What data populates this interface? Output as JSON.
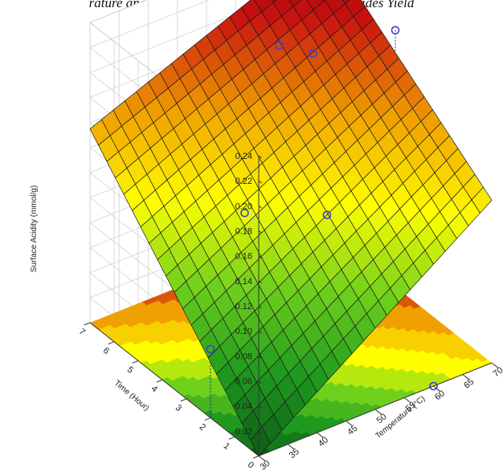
{
  "chart_data": {
    "type": "surface3d",
    "title": "rature and Time of Deammination on Monoglycerides Yield",
    "xlabel": "Temperature (°C)",
    "ylabel": "Time (Hour)",
    "zlabel": "Surface Acidity (mmol/g)",
    "x_ticks": [
      "30",
      "35",
      "40",
      "45",
      "50",
      "55",
      "60",
      "65",
      "70"
    ],
    "y_ticks": [
      "0",
      "1",
      "2",
      "3",
      "4",
      "5",
      "6",
      "7"
    ],
    "z_ticks": [
      "0.02",
      "0.04",
      "0.06",
      "0.08",
      "0.10",
      "0.12",
      "0.14",
      "0.16",
      "0.18",
      "0.20",
      "0.22",
      "0.24"
    ],
    "xlim": [
      30,
      70
    ],
    "ylim": [
      0,
      7
    ],
    "zlim": [
      0,
      0.24
    ],
    "surface_corners": {
      "t30_h0": 0.0,
      "t70_h0": 0.13,
      "t30_h7": 0.155,
      "t70_h7": 0.23
    },
    "observed_points": [
      {
        "temperature": 30,
        "time": 2,
        "value": 0.055
      },
      {
        "temperature": 40,
        "time": 3,
        "value": 0.13
      },
      {
        "temperature": 50,
        "time": 4,
        "value": 0.23
      },
      {
        "temperature": 60,
        "time": 5,
        "value": 0.19
      },
      {
        "temperature": 50,
        "time": 2,
        "value": 0.125
      },
      {
        "temperature": 70,
        "time": 4,
        "value": 0.205
      },
      {
        "temperature": 60,
        "time": 0,
        "value": 0.0
      }
    ],
    "colormap": [
      "#0b5a14",
      "#1f9a1f",
      "#6fd01c",
      "#ffff00",
      "#f0a000",
      "#c81010",
      "#7a0000"
    ],
    "grid": true
  }
}
